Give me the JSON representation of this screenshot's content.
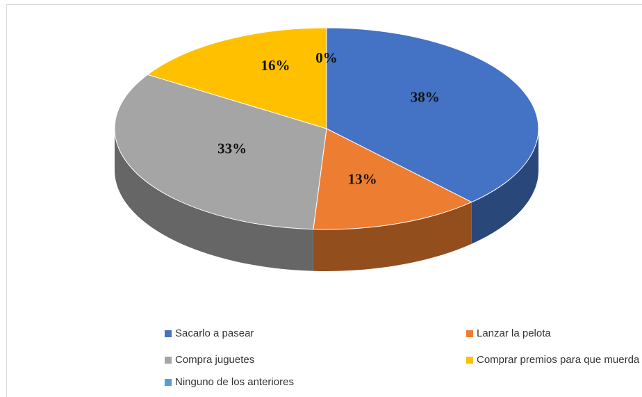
{
  "chart_data": {
    "type": "pie",
    "categories": [
      "Sacarlo a pasear",
      "Lanzar la pelota",
      "Compra juguetes",
      "Comprar premios para que muerda",
      "Ninguno de los anteriores"
    ],
    "values": [
      38,
      13,
      33,
      16,
      0
    ],
    "value_labels": [
      "38%",
      "13%",
      "33%",
      "16%",
      "0%"
    ],
    "colors": [
      "#4472c4",
      "#ed7d31",
      "#a5a5a5",
      "#ffc000",
      "#5b9bd5"
    ],
    "legend": "bottom"
  }
}
